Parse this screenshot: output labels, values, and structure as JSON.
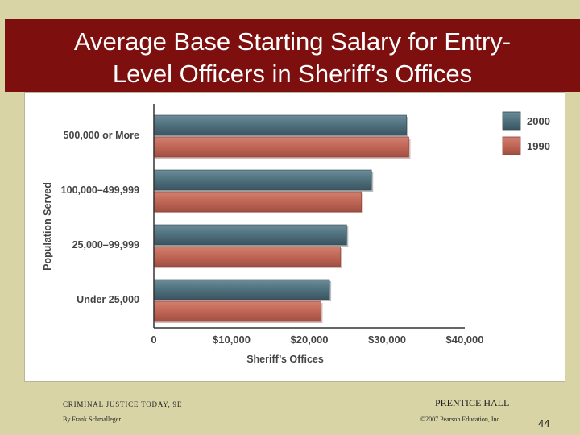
{
  "slide": {
    "title_line1": "Average Base Starting Salary for Entry-",
    "title_line2": "Level Officers in Sheriff’s Offices",
    "page_number": "44"
  },
  "footer": {
    "left_line1": "CRIMINAL JUSTICE TODAY, 9E",
    "left_line2": "By Frank Schmalleger",
    "right_line1": "PRENTICE HALL",
    "right_line2": "©2007 Pearson Education, Inc."
  },
  "colors": {
    "title_bar": "#7e0f0f",
    "series_2000": "#4e6f7c",
    "series_1990": "#c06656",
    "text": "#444444"
  },
  "chart_data": {
    "type": "bar",
    "orientation": "horizontal",
    "title": "",
    "xlabel": "Sheriff’s Offices",
    "ylabel": "Population Served",
    "categories": [
      "500,000 or More",
      "100,000–499,999",
      "25,000–99,999",
      "Under 25,000"
    ],
    "series": [
      {
        "name": "2000",
        "values": [
          32500,
          28000,
          24800,
          22600
        ]
      },
      {
        "name": "1990",
        "values": [
          32800,
          26700,
          24000,
          21500
        ]
      }
    ],
    "xlim": [
      0,
      40000
    ],
    "xticks": [
      0,
      10000,
      20000,
      30000,
      40000
    ],
    "xtick_labels": [
      "0",
      "$10,000",
      "$20,000",
      "$30,000",
      "$40,000"
    ],
    "grid": false,
    "legend_position": "top-right"
  }
}
